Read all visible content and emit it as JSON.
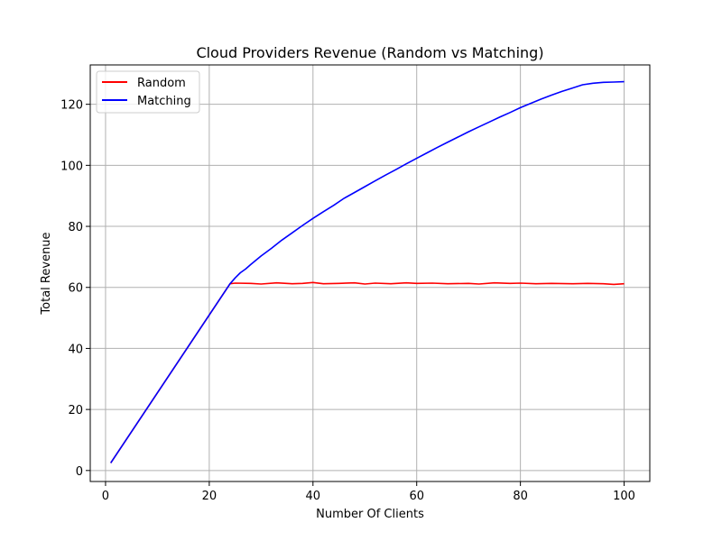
{
  "chart_data": {
    "type": "line",
    "title": "Cloud Providers Revenue (Random vs Matching)",
    "xlabel": "Number Of Clients",
    "ylabel": "Total Revenue",
    "xlim": [
      -2.95,
      104.95
    ],
    "ylim": [
      -3.6,
      132.9
    ],
    "xticks": [
      0,
      20,
      40,
      60,
      80,
      100
    ],
    "yticks": [
      0,
      20,
      40,
      60,
      80,
      100,
      120
    ],
    "grid": true,
    "legend_position": "top-left",
    "series": [
      {
        "name": "Random",
        "color": "#ff0000",
        "x": [
          1,
          24,
          25,
          28,
          30,
          33,
          36,
          38,
          40,
          42,
          45,
          48,
          50,
          52,
          55,
          58,
          60,
          63,
          66,
          70,
          72,
          75,
          78,
          80,
          83,
          86,
          90,
          93,
          96,
          98,
          100
        ],
        "y": [
          2.5,
          61.2,
          61.4,
          61.3,
          61.1,
          61.5,
          61.2,
          61.3,
          61.6,
          61.2,
          61.3,
          61.5,
          61.1,
          61.4,
          61.2,
          61.5,
          61.3,
          61.4,
          61.2,
          61.3,
          61.1,
          61.5,
          61.3,
          61.4,
          61.2,
          61.3,
          61.2,
          61.3,
          61.2,
          61.0,
          61.2
        ]
      },
      {
        "name": "Matching",
        "color": "#0000ff",
        "x": [
          1,
          24,
          25,
          26,
          27,
          28,
          30,
          32,
          34,
          36,
          38,
          40,
          42,
          44,
          46,
          48,
          50,
          52,
          54,
          56,
          58,
          60,
          62,
          64,
          66,
          68,
          70,
          72,
          74,
          76,
          78,
          80,
          82,
          84,
          86,
          88,
          90,
          92,
          94,
          96,
          98,
          100
        ],
        "y": [
          2.5,
          61.2,
          63.1,
          64.8,
          66.0,
          67.5,
          70.3,
          72.8,
          75.5,
          77.9,
          80.3,
          82.6,
          84.8,
          86.9,
          89.2,
          91.1,
          93.0,
          94.9,
          96.8,
          98.6,
          100.5,
          102.3,
          104.1,
          105.9,
          107.6,
          109.3,
          111.0,
          112.6,
          114.2,
          115.8,
          117.3,
          118.9,
          120.3,
          121.7,
          123.0,
          124.2,
          125.3,
          126.4,
          126.9,
          127.2,
          127.3,
          127.4
        ]
      }
    ]
  }
}
